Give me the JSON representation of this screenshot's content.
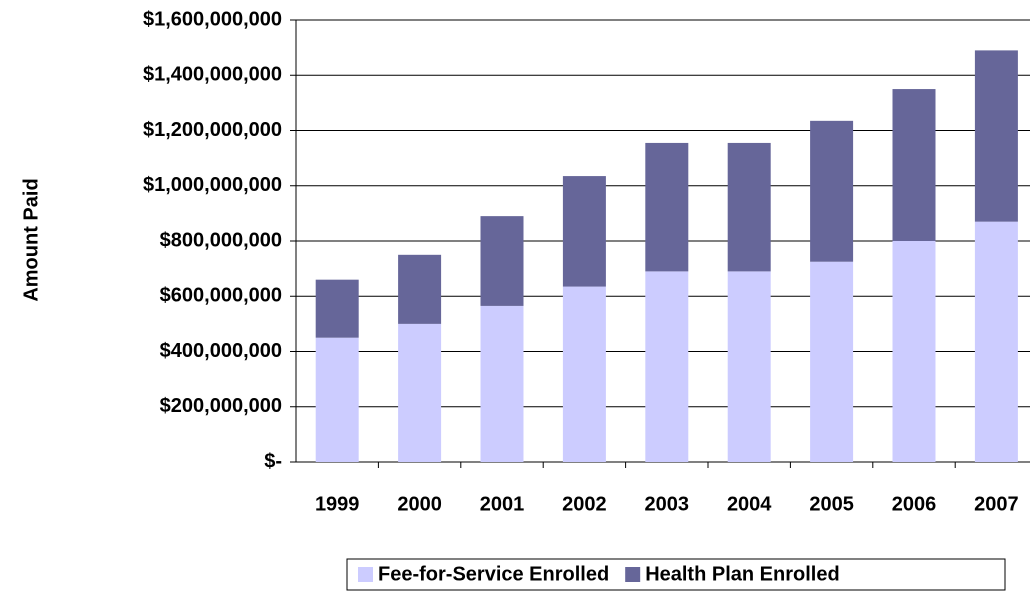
{
  "chart_data": {
    "type": "stacked_bar",
    "y_axis_label": "Amount Paid",
    "categories": [
      "1999",
      "2000",
      "2001",
      "2002",
      "2003",
      "2004",
      "2005",
      "2006",
      "2007"
    ],
    "series": [
      {
        "name": "Fee-for-Service Enrolled",
        "color": "#ccccff",
        "values": [
          450000000,
          500000000,
          565000000,
          635000000,
          690000000,
          690000000,
          725000000,
          800000000,
          870000000
        ]
      },
      {
        "name": "Health Plan Enrolled",
        "color": "#666699",
        "values": [
          210000000,
          250000000,
          325000000,
          400000000,
          465000000,
          465000000,
          510000000,
          550000000,
          620000000
        ]
      }
    ],
    "ylim": [
      0,
      1600000000
    ],
    "yticks": [
      {
        "value": 0,
        "label": "$-"
      },
      {
        "value": 200000000,
        "label": "$200,000,000"
      },
      {
        "value": 400000000,
        "label": "$400,000,000"
      },
      {
        "value": 600000000,
        "label": "$600,000,000"
      },
      {
        "value": 800000000,
        "label": "$800,000,000"
      },
      {
        "value": 1000000000,
        "label": "$1,000,000,000"
      },
      {
        "value": 1200000000,
        "label": "$1,200,000,000"
      },
      {
        "value": 1400000000,
        "label": "$1,400,000,000"
      },
      {
        "value": 1600000000,
        "label": "$1,600,000,000"
      }
    ],
    "grid": true,
    "legend": "bottom"
  }
}
